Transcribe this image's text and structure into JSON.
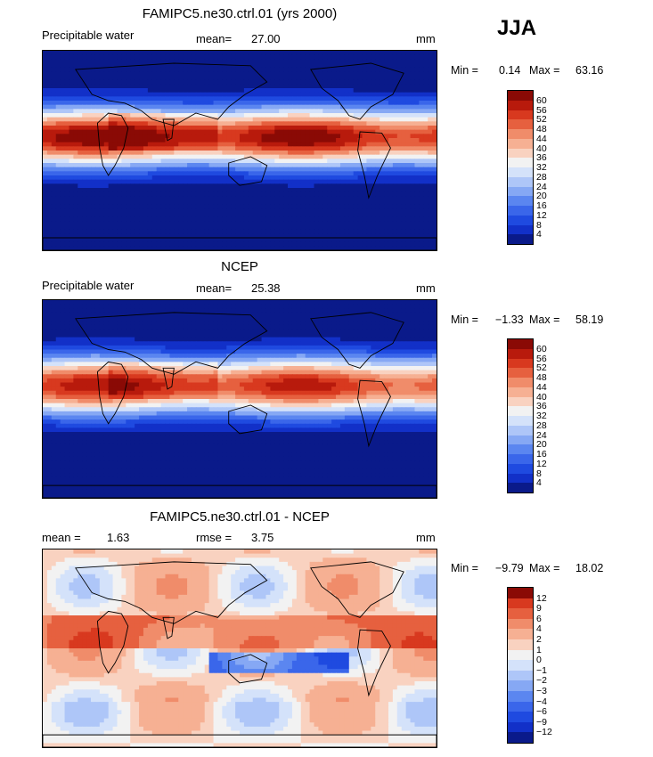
{
  "season": "JJA",
  "panels": [
    {
      "title": "FAMIPC5.ne30.ctrl.01 (yrs 2000)",
      "left_label": "Precipitable water",
      "stat_label": "mean=",
      "stat_value": "27.00",
      "units": "mm",
      "min_label": "Min =",
      "min_value": "0.14",
      "max_label": "Max =",
      "max_value": "63.16"
    },
    {
      "title": "NCEP",
      "left_label": "Precipitable water",
      "stat_label": "mean=",
      "stat_value": "25.38",
      "units": "mm",
      "min_label": "Min =",
      "min_value": "−1.33",
      "max_label": "Max =",
      "max_value": "58.19"
    },
    {
      "title": "FAMIPC5.ne30.ctrl.01 - NCEP",
      "left_label": "mean =",
      "left_value": "1.63",
      "stat_label": "rmse =",
      "stat_value": "3.75",
      "units": "mm",
      "min_label": "Min =",
      "min_value": "−9.79",
      "max_label": "Max =",
      "max_value": "18.02"
    }
  ],
  "chart_data": [
    {
      "type": "heatmap",
      "title": "FAMIPC5.ne30.ctrl.01 (yrs 2000)",
      "variable": "Precipitable water",
      "units": "mm",
      "mean": 27.0,
      "min": 0.14,
      "max": 63.16,
      "levels": [
        4,
        8,
        12,
        16,
        20,
        24,
        28,
        32,
        36,
        40,
        44,
        48,
        52,
        56,
        60
      ],
      "level_labels": [
        "4",
        "8",
        "12",
        "16",
        "20",
        "24",
        "28",
        "32",
        "36",
        "40",
        "44",
        "48",
        "52",
        "56",
        "60"
      ],
      "colors": [
        "#0a1a8a",
        "#1230c8",
        "#1f4ae0",
        "#3a66ea",
        "#5b86f0",
        "#86a8f4",
        "#aec6f8",
        "#d4e2fa",
        "#f2f2f2",
        "#f9d2c0",
        "#f6b093",
        "#f08c6a",
        "#e6603f",
        "#d8391f",
        "#b81a0c",
        "#8a0a05"
      ]
    },
    {
      "type": "heatmap",
      "title": "NCEP",
      "variable": "Precipitable water",
      "units": "mm",
      "mean": 25.38,
      "min": -1.33,
      "max": 58.19,
      "levels": [
        4,
        8,
        12,
        16,
        20,
        24,
        28,
        32,
        36,
        40,
        44,
        48,
        52,
        56,
        60
      ],
      "level_labels": [
        "4",
        "8",
        "12",
        "16",
        "20",
        "24",
        "28",
        "32",
        "36",
        "40",
        "44",
        "48",
        "52",
        "56",
        "60"
      ],
      "colors": [
        "#0a1a8a",
        "#1230c8",
        "#1f4ae0",
        "#3a66ea",
        "#5b86f0",
        "#86a8f4",
        "#aec6f8",
        "#d4e2fa",
        "#f2f2f2",
        "#f9d2c0",
        "#f6b093",
        "#f08c6a",
        "#e6603f",
        "#d8391f",
        "#b81a0c",
        "#8a0a05"
      ]
    },
    {
      "type": "heatmap",
      "title": "FAMIPC5.ne30.ctrl.01 - NCEP",
      "units": "mm",
      "mean": 1.63,
      "rmse": 3.75,
      "min": -9.79,
      "max": 18.02,
      "levels": [
        -12,
        -9,
        -6,
        -4,
        -3,
        -2,
        -1,
        0,
        1,
        2,
        4,
        6,
        9,
        12
      ],
      "level_labels": [
        "−12",
        "−9",
        "−6",
        "−4",
        "−3",
        "−2",
        "−1",
        "0",
        "1",
        "2",
        "4",
        "6",
        "9",
        "12"
      ],
      "colors": [
        "#0a1a8a",
        "#1230c8",
        "#1f4ae0",
        "#3a66ea",
        "#5b86f0",
        "#86a8f4",
        "#aec6f8",
        "#d4e2fa",
        "#f2f2f2",
        "#f9d2c0",
        "#f6b093",
        "#f08c6a",
        "#e6603f",
        "#d8391f",
        "#8a0a05"
      ]
    }
  ]
}
